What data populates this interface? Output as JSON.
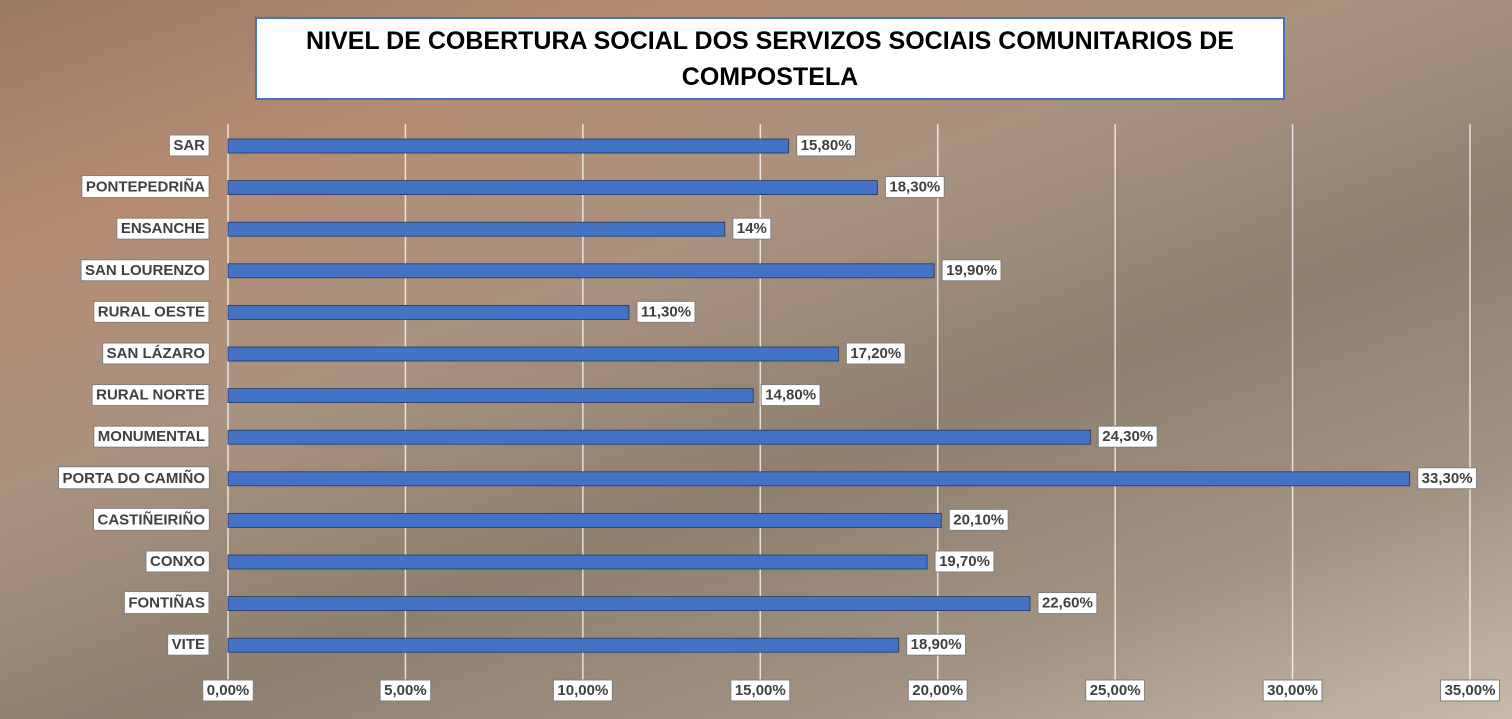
{
  "chart_data": {
    "type": "barh",
    "title": "NIVEL DE COBERTURA SOCIAL DOS SERVIZOS SOCIAIS COMUNITARIOS DE COMPOSTELA",
    "categories": [
      "SAR",
      "PONTEPEDRIÑA",
      "ENSANCHE",
      "SAN LOURENZO",
      "RURAL OESTE",
      "SAN LÁZARO",
      "RURAL NORTE",
      "MONUMENTAL",
      "PORTA DO CAMIÑO",
      "CASTIÑEIRIÑO",
      "CONXO",
      "FONTIÑAS",
      "VITE"
    ],
    "values": [
      15.8,
      18.3,
      14,
      19.9,
      11.3,
      17.2,
      14.8,
      24.3,
      33.3,
      20.1,
      19.7,
      22.6,
      18.9
    ],
    "value_labels": [
      "15,80%",
      "18,30%",
      "14%",
      "19,90%",
      "11,30%",
      "17,20%",
      "14,80%",
      "24,30%",
      "33,30%",
      "20,10%",
      "19,70%",
      "22,60%",
      "18,90%"
    ],
    "color": "#4472c4",
    "xlim": [
      0,
      35
    ],
    "xticks": [
      {
        "value": 0,
        "label": "0,00%"
      },
      {
        "value": 5,
        "label": "5,00%"
      },
      {
        "value": 10,
        "label": "10,00%"
      },
      {
        "value": 15,
        "label": "15,00%"
      },
      {
        "value": 20,
        "label": "20,00%"
      },
      {
        "value": 25,
        "label": "25,00%"
      },
      {
        "value": 30,
        "label": "30,00%"
      },
      {
        "value": 35,
        "label": "35,00%"
      }
    ],
    "grid": true
  }
}
